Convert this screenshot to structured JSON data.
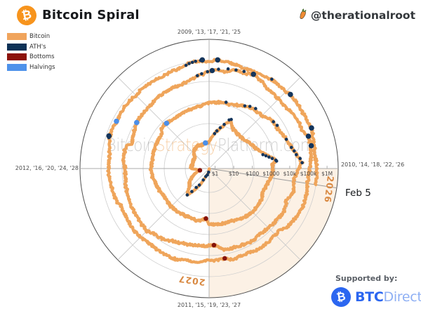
{
  "header": {
    "title": "Bitcoin Spiral",
    "handle": "@therationalroot",
    "logo_glyph": "₿"
  },
  "legend": {
    "items": [
      {
        "label": "Bitcoin",
        "color": "#f0a45c"
      },
      {
        "label": "ATH's",
        "color": "#0c3156"
      },
      {
        "label": "Bottoms",
        "color": "#8c130b"
      },
      {
        "label": "Halvings",
        "color": "#4e92ea"
      }
    ]
  },
  "watermark": {
    "part1": "Bitcoin",
    "part2": "Strategy",
    "part3": "Platform.com"
  },
  "annotations": {
    "current_date": "Feb 5",
    "future_year_right": "2026",
    "future_year_bottom": "2027"
  },
  "footer": {
    "supported_by": "Supported by:",
    "brand_bold": "BTC",
    "brand_light": "Direct",
    "brand_glyph": "₿"
  },
  "chart_data": {
    "type": "line",
    "subtype": "polar-log-spiral",
    "title": "Bitcoin Spiral",
    "angular_axis": {
      "years_per_revolution": 4,
      "direction": "clockwise",
      "start_position": "top",
      "labels": [
        "2009, '13, '17, '21, '25",
        "2010, '14, '18, '22, '26",
        "2011, '15, '19, '23, '27",
        "2012, '16, '20, '24, '28"
      ]
    },
    "radial_axis": {
      "scale": "log10-usd",
      "ticks": [
        "$1",
        "$10",
        "$100",
        "$1000",
        "$10k",
        "$100k",
        "$1M"
      ],
      "grid": true
    },
    "colors": {
      "price_line": "#efa55b",
      "ath": "#14355c",
      "bottom": "#871409",
      "halving": "#4c8fe8",
      "future_wedge": "rgba(236,160,80,0.15)",
      "future_year_label": "#d98a43",
      "grid": "#cfcfcf",
      "axis_spoke": "#ababab",
      "boundary": "#4f4f4f",
      "tick_text": "#4a4a4a"
    },
    "future_shade": {
      "from_date": "Feb 5",
      "from_year": 2026.096,
      "to_year": 2027.0
    },
    "price_usd_by_year": [
      [
        2010.54,
        0.06
      ],
      [
        2010.75,
        0.07
      ],
      [
        2010.83,
        0.2
      ],
      [
        2010.92,
        0.25
      ],
      [
        2011.0,
        0.3
      ],
      [
        2011.09,
        1.1
      ],
      [
        2011.25,
        1.8
      ],
      [
        2011.33,
        6
      ],
      [
        2011.44,
        31
      ],
      [
        2011.52,
        14
      ],
      [
        2011.63,
        9
      ],
      [
        2011.75,
        4.5
      ],
      [
        2011.88,
        2.05
      ],
      [
        2011.96,
        3
      ],
      [
        2012.0,
        5.3
      ],
      [
        2012.17,
        4.9
      ],
      [
        2012.42,
        5.1
      ],
      [
        2012.54,
        9
      ],
      [
        2012.71,
        12
      ],
      [
        2012.79,
        10.5
      ],
      [
        2012.91,
        12.4
      ],
      [
        2013.0,
        13.5
      ],
      [
        2013.09,
        32
      ],
      [
        2013.2,
        90
      ],
      [
        2013.27,
        240
      ],
      [
        2013.33,
        120
      ],
      [
        2013.42,
        100
      ],
      [
        2013.54,
        95
      ],
      [
        2013.65,
        140
      ],
      [
        2013.75,
        200
      ],
      [
        2013.85,
        450
      ],
      [
        2013.92,
        1150
      ],
      [
        2013.96,
        750
      ],
      [
        2014.04,
        820
      ],
      [
        2014.13,
        560
      ],
      [
        2014.25,
        450
      ],
      [
        2014.38,
        590
      ],
      [
        2014.5,
        600
      ],
      [
        2014.63,
        500
      ],
      [
        2014.75,
        350
      ],
      [
        2014.88,
        370
      ],
      [
        2015.0,
        310
      ],
      [
        2015.04,
        180
      ],
      [
        2015.13,
        250
      ],
      [
        2015.3,
        235
      ],
      [
        2015.5,
        265
      ],
      [
        2015.63,
        235
      ],
      [
        2015.79,
        300
      ],
      [
        2015.92,
        400
      ],
      [
        2016.0,
        430
      ],
      [
        2016.08,
        380
      ],
      [
        2016.25,
        420
      ],
      [
        2016.4,
        450
      ],
      [
        2016.46,
        700
      ],
      [
        2016.52,
        655
      ],
      [
        2016.63,
        580
      ],
      [
        2016.79,
        640
      ],
      [
        2016.92,
        750
      ],
      [
        2017.0,
        970
      ],
      [
        2017.13,
        1150
      ],
      [
        2017.2,
        1080
      ],
      [
        2017.33,
        1900
      ],
      [
        2017.42,
        2500
      ],
      [
        2017.5,
        2600
      ],
      [
        2017.6,
        4400
      ],
      [
        2017.67,
        4300
      ],
      [
        2017.75,
        5700
      ],
      [
        2017.83,
        7500
      ],
      [
        2017.92,
        14000
      ],
      [
        2017.96,
        19000
      ],
      [
        2018.0,
        13500
      ],
      [
        2018.08,
        8500
      ],
      [
        2018.17,
        10500
      ],
      [
        2018.25,
        7000
      ],
      [
        2018.33,
        9200
      ],
      [
        2018.46,
        7500
      ],
      [
        2018.58,
        6300
      ],
      [
        2018.67,
        7300
      ],
      [
        2018.79,
        6400
      ],
      [
        2018.88,
        6300
      ],
      [
        2018.92,
        4000
      ],
      [
        2018.96,
        3250
      ],
      [
        2019.04,
        3500
      ],
      [
        2019.17,
        3900
      ],
      [
        2019.29,
        5100
      ],
      [
        2019.38,
        7500
      ],
      [
        2019.46,
        8800
      ],
      [
        2019.5,
        11500
      ],
      [
        2019.58,
        10000
      ],
      [
        2019.71,
        9500
      ],
      [
        2019.83,
        8500
      ],
      [
        2019.92,
        7200
      ],
      [
        2020.0,
        7200
      ],
      [
        2020.08,
        9400
      ],
      [
        2020.17,
        8700
      ],
      [
        2020.2,
        5000
      ],
      [
        2020.29,
        6900
      ],
      [
        2020.36,
        8750
      ],
      [
        2020.46,
        9500
      ],
      [
        2020.54,
        9200
      ],
      [
        2020.63,
        11300
      ],
      [
        2020.71,
        11700
      ],
      [
        2020.79,
        10600
      ],
      [
        2020.85,
        13500
      ],
      [
        2020.9,
        17000
      ],
      [
        2020.96,
        23000
      ],
      [
        2021.0,
        29000
      ],
      [
        2021.05,
        38000
      ],
      [
        2021.1,
        33000
      ],
      [
        2021.15,
        46000
      ],
      [
        2021.23,
        50000
      ],
      [
        2021.28,
        63000
      ],
      [
        2021.33,
        54000
      ],
      [
        2021.4,
        37000
      ],
      [
        2021.5,
        34000
      ],
      [
        2021.55,
        32000
      ],
      [
        2021.63,
        42000
      ],
      [
        2021.7,
        48000
      ],
      [
        2021.75,
        44000
      ],
      [
        2021.8,
        61000
      ],
      [
        2021.86,
        67000
      ],
      [
        2021.92,
        57000
      ],
      [
        2021.96,
        47000
      ],
      [
        2022.0,
        46500
      ],
      [
        2022.08,
        38000
      ],
      [
        2022.15,
        44000
      ],
      [
        2022.25,
        45500
      ],
      [
        2022.33,
        39000
      ],
      [
        2022.42,
        30000
      ],
      [
        2022.46,
        20000
      ],
      [
        2022.54,
        21000
      ],
      [
        2022.63,
        23500
      ],
      [
        2022.71,
        19500
      ],
      [
        2022.79,
        19500
      ],
      [
        2022.85,
        20500
      ],
      [
        2022.89,
        16000
      ],
      [
        2022.96,
        16800
      ],
      [
        2023.0,
        16600
      ],
      [
        2023.08,
        23000
      ],
      [
        2023.17,
        22500
      ],
      [
        2023.21,
        28000
      ],
      [
        2023.29,
        28500
      ],
      [
        2023.38,
        27000
      ],
      [
        2023.46,
        26500
      ],
      [
        2023.5,
        30500
      ],
      [
        2023.58,
        29300
      ],
      [
        2023.67,
        26000
      ],
      [
        2023.75,
        27000
      ],
      [
        2023.79,
        34500
      ],
      [
        2023.88,
        37000
      ],
      [
        2023.96,
        43000
      ],
      [
        2024.04,
        42600
      ],
      [
        2024.08,
        43000
      ],
      [
        2024.13,
        51000
      ],
      [
        2024.2,
        68000
      ],
      [
        2024.25,
        70000
      ],
      [
        2024.29,
        64000
      ],
      [
        2024.33,
        62000
      ],
      [
        2024.42,
        68000
      ],
      [
        2024.5,
        61000
      ],
      [
        2024.58,
        66000
      ],
      [
        2024.63,
        59000
      ],
      [
        2024.71,
        59000
      ],
      [
        2024.79,
        63000
      ],
      [
        2024.83,
        69000
      ],
      [
        2024.88,
        91000
      ],
      [
        2024.96,
        97000
      ],
      [
        2025.0,
        94000
      ],
      [
        2025.05,
        102000
      ],
      [
        2025.13,
        96000
      ],
      [
        2025.17,
        84000
      ],
      [
        2025.25,
        82500
      ],
      [
        2025.3,
        87000
      ],
      [
        2025.38,
        103000
      ],
      [
        2025.42,
        109000
      ],
      [
        2025.5,
        108000
      ],
      [
        2025.54,
        118000
      ],
      [
        2025.58,
        115000
      ],
      [
        2025.67,
        110000
      ],
      [
        2025.71,
        114000
      ],
      [
        2025.77,
        121000
      ],
      [
        2025.83,
        103000
      ],
      [
        2025.88,
        91000
      ],
      [
        2025.92,
        87000
      ],
      [
        2025.96,
        92000
      ],
      [
        2026.0,
        94000
      ],
      [
        2026.05,
        96000
      ],
      [
        2026.096,
        97000
      ]
    ],
    "ath_points": [
      [
        2011.09,
        1.1
      ],
      [
        2011.17,
        1.5
      ],
      [
        2011.25,
        1.9
      ],
      [
        2011.3,
        3
      ],
      [
        2011.34,
        6
      ],
      [
        2011.38,
        8.9
      ],
      [
        2011.41,
        17
      ],
      [
        2011.44,
        31
      ],
      [
        2013.1,
        35
      ],
      [
        2013.13,
        49
      ],
      [
        2013.17,
        75
      ],
      [
        2013.21,
        120
      ],
      [
        2013.25,
        230
      ],
      [
        2013.27,
        266
      ],
      [
        2013.84,
        320
      ],
      [
        2013.86,
        430
      ],
      [
        2013.88,
        580
      ],
      [
        2013.9,
        800
      ],
      [
        2013.92,
        1150
      ],
      [
        2013.93,
        1242
      ],
      [
        2017.16,
        1300
      ],
      [
        2017.33,
        1950
      ],
      [
        2017.37,
        2500
      ],
      [
        2017.42,
        2950
      ],
      [
        2017.6,
        4400
      ],
      [
        2017.64,
        4950
      ],
      [
        2017.77,
        6150
      ],
      [
        2017.84,
        8000
      ],
      [
        2017.87,
        9900
      ],
      [
        2017.9,
        11500
      ],
      [
        2017.93,
        16500
      ],
      [
        2017.96,
        19800
      ],
      [
        2020.92,
        20500
      ],
      [
        2020.95,
        24000
      ],
      [
        2020.99,
        29000
      ],
      [
        2021.02,
        33000,
        1
      ],
      [
        2021.06,
        40000
      ],
      [
        2021.12,
        48000
      ],
      [
        2021.17,
        52000
      ],
      [
        2021.22,
        58500
      ],
      [
        2021.28,
        64800,
        1
      ],
      [
        2021.8,
        66900,
        1
      ],
      [
        2021.86,
        69000,
        1
      ],
      [
        2024.19,
        71000
      ],
      [
        2024.2,
        73700,
        1
      ],
      [
        2024.86,
        77000
      ],
      [
        2024.88,
        87000
      ],
      [
        2024.9,
        93000
      ],
      [
        2024.92,
        99500
      ],
      [
        2024.95,
        104000
      ],
      [
        2024.96,
        108000,
        1
      ],
      [
        2025.05,
        109300,
        1
      ],
      [
        2025.39,
        111900
      ],
      [
        2025.53,
        123200,
        1
      ],
      [
        2025.76,
        126200,
        1
      ]
    ],
    "bottom_points": [
      [
        2011.88,
        2.05
      ],
      [
        2015.04,
        175
      ],
      [
        2018.96,
        3250
      ],
      [
        2022.89,
        15600
      ]
    ],
    "halving_points": [
      [
        2012.91,
        12.4
      ],
      [
        2016.52,
        655
      ],
      [
        2020.36,
        8750
      ],
      [
        2024.3,
        64000
      ]
    ]
  }
}
